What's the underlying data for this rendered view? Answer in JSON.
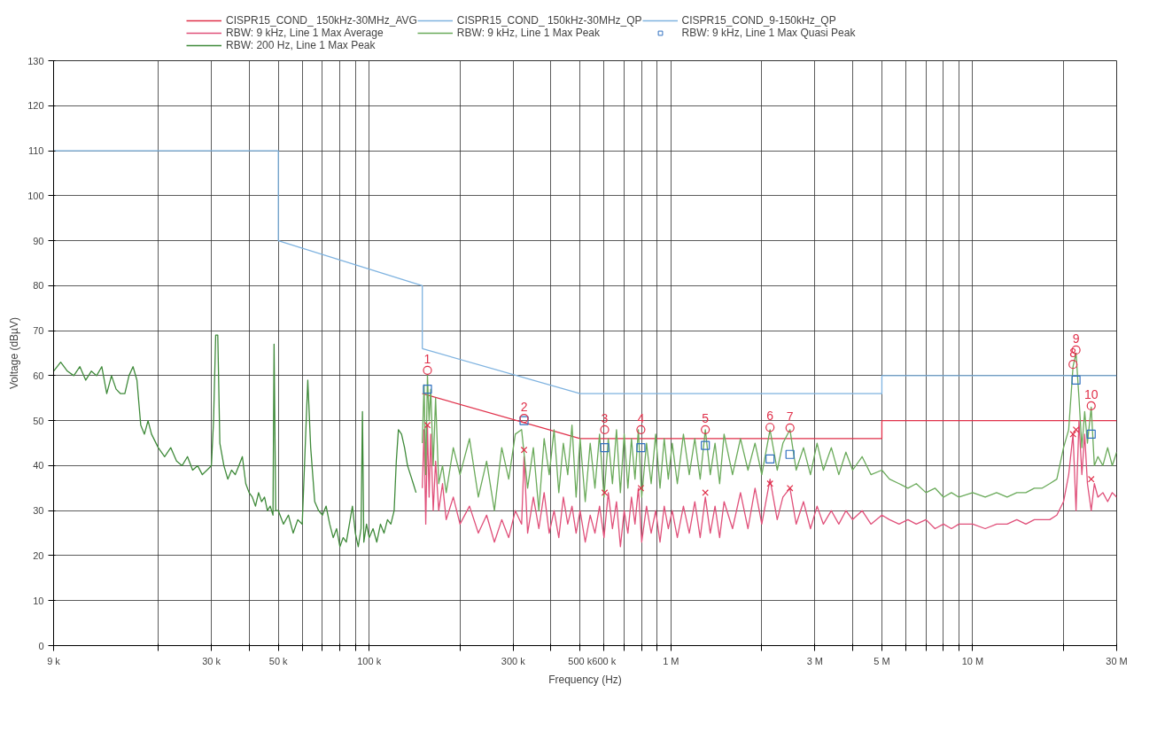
{
  "chart_data": {
    "type": "line",
    "xlabel": "Frequency (Hz)",
    "ylabel": "Voltage (dBµV)",
    "log": "x",
    "grid": true,
    "legend": "top",
    "xlim": [
      9000,
      30000000
    ],
    "ylim": [
      0,
      130
    ],
    "xticks": [
      {
        "value": 9000,
        "label": "9 k"
      },
      {
        "value": 20000,
        "label": null
      },
      {
        "value": 30000,
        "label": "30 k"
      },
      {
        "value": 40000,
        "label": null
      },
      {
        "value": 50000,
        "label": "50 k"
      },
      {
        "value": 60000,
        "label": null
      },
      {
        "value": 70000,
        "label": null
      },
      {
        "value": 80000,
        "label": null
      },
      {
        "value": 90000,
        "label": null
      },
      {
        "value": 100000,
        "label": "100 k"
      },
      {
        "value": 200000,
        "label": null
      },
      {
        "value": 300000,
        "label": "300 k"
      },
      {
        "value": 400000,
        "label": null
      },
      {
        "value": 500000,
        "label": "500 k"
      },
      {
        "value": 600000,
        "label": "600 k"
      },
      {
        "value": 700000,
        "label": null
      },
      {
        "value": 800000,
        "label": null
      },
      {
        "value": 900000,
        "label": null
      },
      {
        "value": 1000000,
        "label": "1 M"
      },
      {
        "value": 2000000,
        "label": null
      },
      {
        "value": 3000000,
        "label": "3 M"
      },
      {
        "value": 4000000,
        "label": null
      },
      {
        "value": 5000000,
        "label": "5 M"
      },
      {
        "value": 6000000,
        "label": null
      },
      {
        "value": 7000000,
        "label": null
      },
      {
        "value": 8000000,
        "label": null
      },
      {
        "value": 9000000,
        "label": null
      },
      {
        "value": 10000000,
        "label": "10 M"
      },
      {
        "value": 20000000,
        "label": null
      },
      {
        "value": 30000000,
        "label": "30 M"
      }
    ],
    "yticks": [
      0,
      10,
      20,
      30,
      40,
      50,
      60,
      70,
      80,
      90,
      100,
      110,
      120,
      130
    ],
    "series": [
      {
        "name": "CISPR15_COND_ 150kHz-30MHz_AVG",
        "color": "#e0304a",
        "x": [
          150000,
          500000,
          5000000,
          5000000,
          30000000
        ],
        "values": [
          56,
          46,
          46,
          50,
          50
        ]
      },
      {
        "name": "CISPR15_COND_ 150kHz-30MHz_QP",
        "color": "#7fb3e0",
        "x": [
          150000,
          500000,
          5000000,
          5000000,
          30000000
        ],
        "values": [
          66,
          56,
          56,
          60,
          60
        ]
      },
      {
        "name": "CISPR15_COND_9-150kHz_QP",
        "color": "#7fb3e0",
        "x": [
          9000,
          50000,
          50000,
          150000,
          150000
        ],
        "values": [
          110,
          110,
          90,
          80,
          66
        ]
      },
      {
        "name": "RBW: 9 kHz, Line 1 Max Average",
        "color": "#e0507a",
        "x": [
          150000,
          152000,
          154000,
          156000,
          158000,
          160000,
          163000,
          166000,
          170000,
          175000,
          180000,
          190000,
          200000,
          215000,
          230000,
          245000,
          260000,
          275000,
          290000,
          305000,
          320000,
          326000,
          335000,
          350000,
          365000,
          380000,
          395000,
          410000,
          425000,
          440000,
          455000,
          470000,
          485000,
          500000,
          520000,
          540000,
          560000,
          580000,
          600000,
          620000,
          640000,
          660000,
          680000,
          700000,
          720000,
          740000,
          760000,
          780000,
          800000,
          830000,
          860000,
          890000,
          920000,
          950000,
          980000,
          1010000,
          1050000,
          1100000,
          1150000,
          1200000,
          1250000,
          1300000,
          1350000,
          1400000,
          1450000,
          1500000,
          1600000,
          1700000,
          1800000,
          1900000,
          2000000,
          2130000,
          2250000,
          2350000,
          2480000,
          2600000,
          2750000,
          2900000,
          3050000,
          3200000,
          3400000,
          3600000,
          3800000,
          4000000,
          4300000,
          4600000,
          5000000,
          5300000,
          5700000,
          6100000,
          6500000,
          7000000,
          7500000,
          8000000,
          8500000,
          9000000,
          10000000,
          11000000,
          12000000,
          13000000,
          14000000,
          15000000,
          16000000,
          17000000,
          18000000,
          19000000,
          20000000,
          20800000,
          21500000,
          22000000,
          22500000,
          23000000,
          23500000,
          24000000,
          24700000,
          25300000,
          26000000,
          27000000,
          28000000,
          29000000,
          30000000
        ],
        "values": [
          35,
          48,
          27,
          49,
          33,
          47,
          30,
          41,
          30,
          36,
          28,
          33,
          27,
          31,
          25,
          29,
          23,
          28,
          24,
          30,
          27,
          42,
          25,
          33,
          26,
          34,
          25,
          30,
          24,
          33,
          27,
          31,
          25,
          30,
          23,
          29,
          25,
          31,
          24,
          34,
          26,
          32,
          22,
          30,
          25,
          33,
          27,
          35,
          23,
          31,
          25,
          30,
          23,
          31,
          26,
          30,
          24,
          31,
          25,
          32,
          24,
          33,
          25,
          31,
          24,
          32,
          26,
          34,
          26,
          35,
          27,
          37,
          28,
          33,
          35,
          27,
          32,
          26,
          31,
          27,
          30,
          27,
          30,
          28,
          30,
          27,
          29,
          28,
          27,
          28,
          27,
          28,
          26,
          27,
          26,
          27,
          27,
          26,
          27,
          27,
          28,
          27,
          28,
          28,
          28,
          29,
          32,
          38,
          47,
          30,
          50,
          38,
          47,
          36,
          30,
          36,
          33,
          34,
          32,
          34,
          33
        ]
      },
      {
        "name": "RBW: 9 kHz, Line 1 Max Peak",
        "color": "#6aaa5a",
        "x": [
          150000,
          152000,
          154000,
          156000,
          158000,
          160000,
          163000,
          166000,
          170000,
          175000,
          180000,
          190000,
          200000,
          215000,
          230000,
          245000,
          260000,
          275000,
          290000,
          305000,
          320000,
          335000,
          350000,
          365000,
          380000,
          395000,
          410000,
          425000,
          440000,
          455000,
          470000,
          485000,
          500000,
          520000,
          540000,
          560000,
          580000,
          600000,
          620000,
          640000,
          660000,
          680000,
          700000,
          720000,
          740000,
          760000,
          780000,
          800000,
          830000,
          860000,
          890000,
          920000,
          950000,
          980000,
          1010000,
          1050000,
          1100000,
          1150000,
          1200000,
          1250000,
          1300000,
          1350000,
          1400000,
          1450000,
          1500000,
          1600000,
          1700000,
          1800000,
          1900000,
          2000000,
          2130000,
          2250000,
          2350000,
          2480000,
          2600000,
          2750000,
          2900000,
          3050000,
          3200000,
          3400000,
          3600000,
          3800000,
          4000000,
          4300000,
          4600000,
          5000000,
          5300000,
          5700000,
          6100000,
          6500000,
          7000000,
          7500000,
          8000000,
          8500000,
          9000000,
          10000000,
          11000000,
          12000000,
          13000000,
          14000000,
          15000000,
          16000000,
          17000000,
          18000000,
          19000000,
          20000000,
          20800000,
          21500000,
          22000000,
          22500000,
          23000000,
          23500000,
          24000000,
          24700000,
          25300000,
          26000000,
          27000000,
          28000000,
          29000000,
          30000000
        ],
        "values": [
          45,
          58,
          38,
          60,
          50,
          57,
          40,
          55,
          36,
          40,
          34,
          44,
          38,
          46,
          33,
          41,
          30,
          44,
          37,
          47,
          48,
          35,
          44,
          30,
          46,
          38,
          48,
          34,
          45,
          38,
          49,
          33,
          46,
          32,
          45,
          35,
          47,
          33,
          46,
          36,
          48,
          34,
          47,
          35,
          46,
          37,
          48,
          33,
          45,
          36,
          47,
          35,
          46,
          37,
          45,
          36,
          47,
          38,
          46,
          37,
          48,
          38,
          45,
          36,
          47,
          38,
          46,
          39,
          45,
          38,
          48,
          39,
          45,
          48,
          39,
          44,
          38,
          45,
          39,
          44,
          38,
          43,
          39,
          42,
          38,
          39,
          37,
          36,
          35,
          36,
          34,
          35,
          33,
          34,
          33,
          34,
          33,
          34,
          33,
          34,
          34,
          35,
          35,
          36,
          37,
          44,
          48,
          62,
          65,
          55,
          44,
          52,
          45,
          53,
          40,
          42,
          40,
          44,
          40,
          43
        ]
      },
      {
        "name": "RBW: 9 kHz, Line 1 Max Quasi Peak",
        "color": "#3070c0",
        "type": "scatter",
        "marker": "square",
        "x": [
          156000,
          326000,
          603000,
          795000,
          1300000,
          2130000,
          2480000,
          22000000,
          24700000
        ],
        "values": [
          57,
          50,
          44,
          44,
          44.5,
          41.5,
          42.5,
          59,
          47
        ]
      },
      {
        "name": "RBW: 200 Hz, Line 1 Max Peak",
        "color": "#3f8a3a",
        "x": [
          9000,
          9500,
          10000,
          10500,
          11000,
          11500,
          12000,
          12500,
          13000,
          13500,
          14000,
          14500,
          15000,
          15500,
          16000,
          16500,
          17000,
          17500,
          18000,
          18500,
          19000,
          20000,
          21000,
          22000,
          23000,
          24000,
          25000,
          26000,
          27000,
          28000,
          29000,
          30000,
          30500,
          31000,
          31500,
          32000,
          33000,
          34000,
          35000,
          36000,
          37000,
          38000,
          39000,
          40000,
          41000,
          42000,
          43000,
          44000,
          45000,
          46000,
          47000,
          48000,
          48400,
          49000,
          50000,
          52000,
          54000,
          56000,
          58000,
          60000,
          62600,
          64000,
          66000,
          68000,
          70000,
          72000,
          74000,
          76000,
          78000,
          80000,
          82000,
          84000,
          86000,
          88000,
          90000,
          92000,
          94000,
          95000,
          96000,
          98000,
          100000,
          103000,
          106000,
          109000,
          112000,
          115000,
          118000,
          121000,
          123000,
          125000,
          128000,
          131000,
          134000,
          137000,
          140000,
          143000
        ],
        "values": [
          61,
          63,
          61,
          60,
          62,
          59,
          61,
          60,
          62,
          56,
          60,
          57,
          56,
          56,
          60,
          62,
          59,
          49,
          47,
          50,
          47,
          44,
          42,
          44,
          41,
          40,
          42,
          39,
          40,
          38,
          39,
          40,
          50,
          69,
          69,
          45,
          40,
          37,
          39,
          38,
          40,
          42,
          36,
          34,
          33,
          31,
          34,
          32,
          33,
          30,
          31,
          29,
          67,
          30,
          30,
          27,
          29,
          25,
          28,
          27,
          59,
          44,
          32,
          30,
          29,
          31,
          27,
          24,
          26,
          22,
          24,
          23,
          27,
          31,
          25,
          22,
          26,
          52,
          23,
          27,
          24,
          26,
          23,
          27,
          25,
          28,
          27,
          30,
          41,
          48,
          47,
          44,
          40,
          38,
          36,
          34
        ]
      },
      {
        "color": "#e0304a",
        "type": "scatter",
        "marker": "circle",
        "x": [
          156000,
          326000,
          603000,
          795000,
          1300000,
          2130000,
          2480000,
          21500000,
          22000000,
          24700000
        ],
        "values": [
          61.2,
          50.5,
          48,
          48,
          48,
          48.5,
          48.4,
          62.5,
          65.7,
          53.3
        ]
      },
      {
        "color": "#e0304a",
        "type": "scatter",
        "marker": "cross",
        "x": [
          156000,
          326000,
          603000,
          795000,
          1300000,
          2130000,
          2480000,
          21500000,
          22000000,
          24700000
        ],
        "values": [
          49,
          43.5,
          34,
          35,
          34,
          36,
          35,
          47,
          48,
          37
        ]
      }
    ],
    "annotations": [
      {
        "text": "1",
        "x": 156000,
        "y": 61.2
      },
      {
        "text": "2",
        "x": 326000,
        "y": 50.5
      },
      {
        "text": "3",
        "x": 603000,
        "y": 48
      },
      {
        "text": "4",
        "x": 795000,
        "y": 48
      },
      {
        "text": "5",
        "x": 1300000,
        "y": 48
      },
      {
        "text": "6",
        "x": 2130000,
        "y": 48.5
      },
      {
        "text": "7",
        "x": 2480000,
        "y": 48.4
      },
      {
        "text": "8",
        "x": 21500000,
        "y": 62.5
      },
      {
        "text": "9",
        "x": 22000000,
        "y": 65.7
      },
      {
        "text": "10",
        "x": 24700000,
        "y": 53.3
      }
    ]
  }
}
